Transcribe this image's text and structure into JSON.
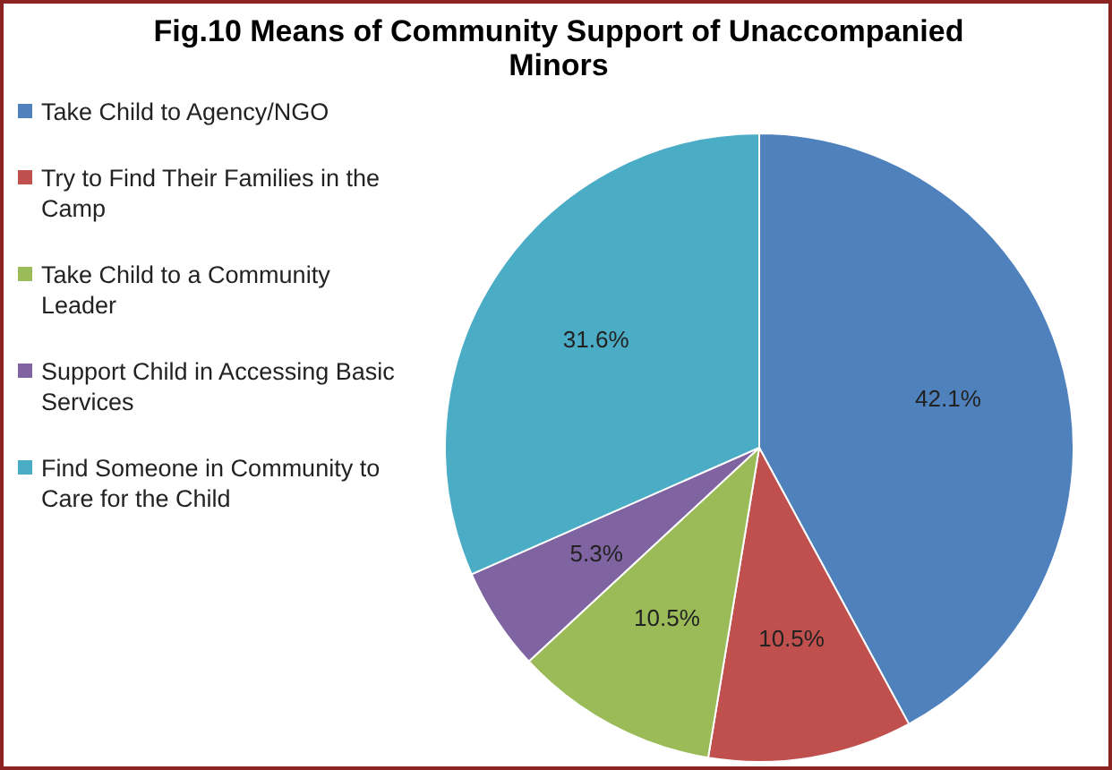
{
  "chart_data": {
    "type": "pie",
    "title": "Fig.10 Means of Community Support of Unaccompanied Minors",
    "categories": [
      "Take Child to Agency/NGO",
      "Try to Find Their Families in the Camp",
      "Take Child to a Community Leader",
      "Support Child in Accessing Basic Services",
      "Find Someone in Community to Care for the Child"
    ],
    "values": [
      42.1,
      10.5,
      10.5,
      5.3,
      31.6
    ],
    "value_labels": [
      "42.1%",
      "10.5%",
      "10.5%",
      "5.3%",
      "31.6%"
    ],
    "colors": [
      "#4f81bd",
      "#c0504d",
      "#9bbb59",
      "#8064a2",
      "#4bacc6"
    ],
    "legend": "left"
  }
}
